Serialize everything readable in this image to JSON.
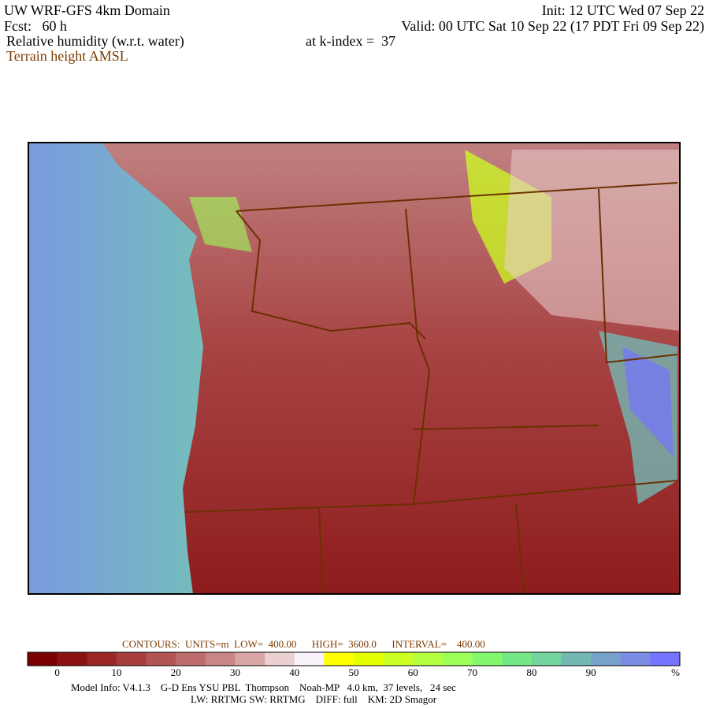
{
  "header": {
    "title": "UW WRF-GFS 4km Domain",
    "init": "Init: 12 UTC Wed 07 Sep 22",
    "fcst": "Fcst:   60 h",
    "valid": "Valid: 00 UTC Sat 10 Sep 22 (17 PDT Fri 09 Sep 22)",
    "field": "Relative humidity (w.r.t. water)",
    "level": "at k-index =  37",
    "overlay": "Terrain height AMSL"
  },
  "contours": "CONTOURS:  UNITS=m  LOW=  400.00      HIGH=  3600.0      INTERVAL=    400.00",
  "colorbar": {
    "lim": [
      -5,
      105
    ],
    "ticks": [
      0,
      10,
      20,
      30,
      40,
      50,
      60,
      70,
      80,
      90
    ],
    "unit": "%",
    "colors": [
      "#780000",
      "#8a1212",
      "#9a2626",
      "#a63c3c",
      "#b25454",
      "#be6c6c",
      "#ca8686",
      "#d8a6a6",
      "#ead0d0",
      "#faf2fa",
      "#ffff00",
      "#e4ff00",
      "#ccff22",
      "#b4ff40",
      "#9cff58",
      "#84f86c",
      "#74e884",
      "#72d49c",
      "#74b8b4",
      "#76a2cc",
      "#7a8ce4",
      "#7474ff"
    ]
  },
  "footer": {
    "line1": "Model Info: V4.1.3    G-D Ens YSU PBL  Thompson    Noah-MP   4.0 km,  37 levels,   24 sec",
    "line2": "LW: RRTMG SW: RRTMG    DIFF: full    KM: 2D Smagor"
  }
}
